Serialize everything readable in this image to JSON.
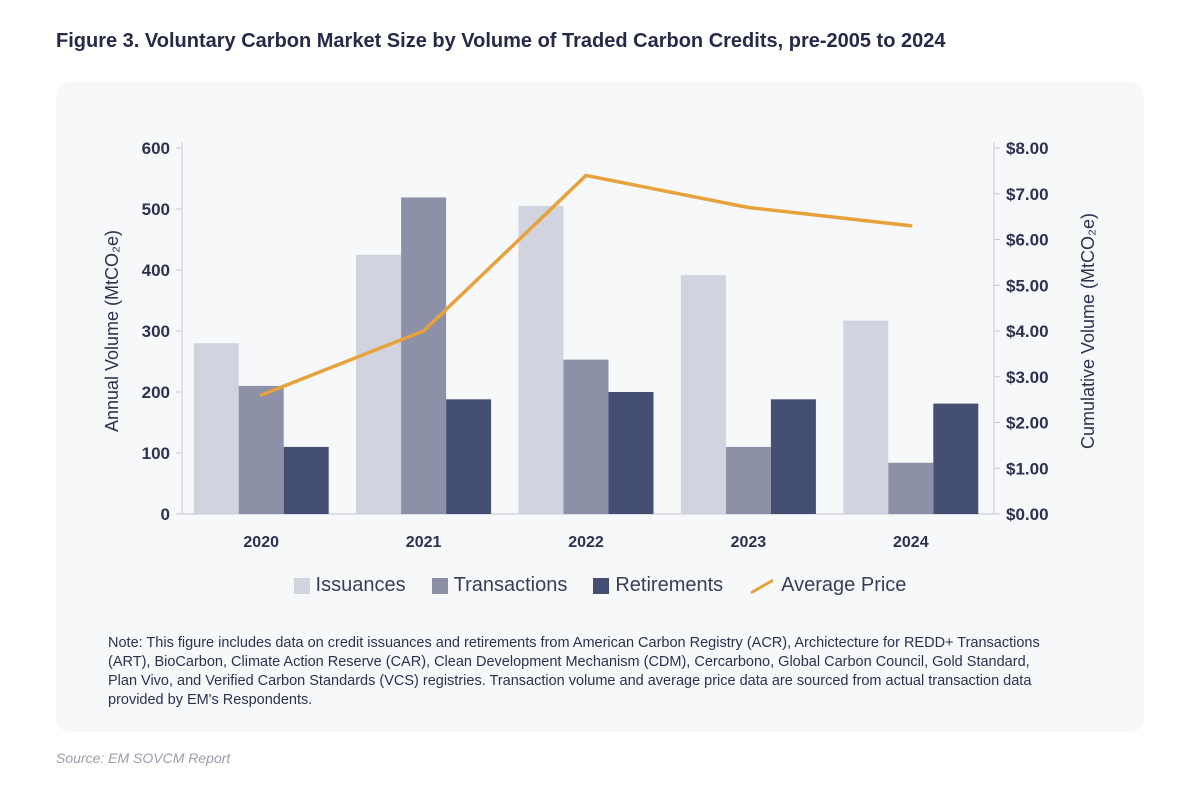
{
  "title": "Figure 3. Voluntary Carbon Market Size by Volume of Traded Carbon Credits, pre-2005 to 2024",
  "note": "Note: This figure includes data on credit issuances and retirements from American Carbon Registry (ACR), Archictecture for REDD+ Transactions (ART), BioCarbon, Climate Action Reserve (CAR), Clean Development Mechanism (CDM), Cercarbono, Global Carbon Council, Gold Standard, Plan Vivo, and Verified Carbon Standards (VCS) registries. Transaction volume and average price data are sourced from actual transaction data provided by EM's Respondents.",
  "source": "Source: EM SOVCM Report",
  "colors": {
    "issuances": "#d1d4de",
    "transactions": "#8c91a8",
    "retirements": "#454f73",
    "price": "#e8a23c"
  },
  "chart_data": {
    "type": "bar",
    "categories": [
      "2020",
      "2021",
      "2022",
      "2023",
      "2024"
    ],
    "series": [
      {
        "name": "Issuances",
        "kind": "bar",
        "axis": "left",
        "values": [
          280,
          425,
          505,
          392,
          317
        ]
      },
      {
        "name": "Transactions",
        "kind": "bar",
        "axis": "left",
        "values": [
          210,
          519,
          253,
          110,
          84
        ]
      },
      {
        "name": "Retirements",
        "kind": "bar",
        "axis": "left",
        "values": [
          110,
          188,
          200,
          188,
          181
        ]
      },
      {
        "name": "Average Price",
        "kind": "line",
        "axis": "right",
        "values": [
          2.6,
          4.0,
          7.4,
          6.7,
          6.3
        ]
      }
    ],
    "ylabel": "Annual Volume (MtCO₂e)",
    "y2label": "Cumulative Volume (MtCO₂e)",
    "ylim": [
      0,
      600
    ],
    "y2lim": [
      0,
      8
    ],
    "yticks": [
      "0",
      "100",
      "200",
      "300",
      "400",
      "500",
      "600"
    ],
    "y2ticks": [
      "$0.00",
      "$1.00",
      "$2.00",
      "$3.00",
      "$4.00",
      "$5.00",
      "$6.00",
      "$7.00",
      "$8.00"
    ],
    "legend": [
      "Issuances",
      "Transactions",
      "Retirements",
      "Average Price"
    ],
    "legend_position": "bottom"
  }
}
